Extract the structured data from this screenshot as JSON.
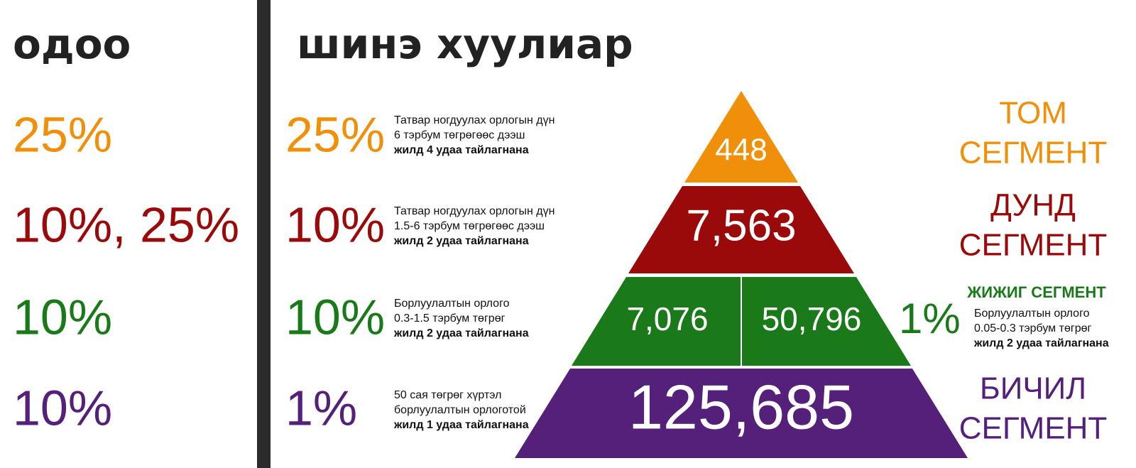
{
  "header": {
    "current_title": "одоо",
    "new_title": "шинэ хуулиар"
  },
  "current_rates": [
    "25%",
    "10%, 25%",
    "10%",
    "10%"
  ],
  "tiers": [
    {
      "rate": "25%",
      "lines": [
        "Татвар ногдуулах орлогын дүн",
        "6 тэрбум төгрөгөөс дээш",
        "жилд 4 удаа тайлагнана"
      ]
    },
    {
      "rate": "10%",
      "lines": [
        "Татвар ногдуулах орлогын дүн",
        "1.5-6 тэрбум төгрөгөөс дээш",
        "жилд 2 удаа тайлагнана"
      ]
    },
    {
      "rate": "10%",
      "lines": [
        "Борлуулалтын орлого",
        "0.3-1.5 тэрбум төгрөг",
        "жилд 2 удаа тайлагнана"
      ]
    },
    {
      "rate": "1%",
      "lines": [
        "50 сая төгрөг хүртэл",
        "борлуулалтын орлоготой",
        "жилд 1 удаа тайлагнана"
      ]
    }
  ],
  "pyramid": [
    "448",
    "7,563",
    "7,076",
    "50,796",
    "125,685"
  ],
  "segments": {
    "large": [
      "ТОМ",
      "СЕГМЕНТ"
    ],
    "medium": [
      "ДУНД",
      "СЕГМЕНТ"
    ],
    "small": {
      "name": "ЖИЖИГ СЕГМЕНТ",
      "rate": "1%",
      "lines": [
        "Борлуулалтын орлого",
        "0.05-0.3 тэрбум төгрөг",
        "жилд 2 удаа тайлагнана"
      ]
    },
    "micro": [
      "БИЧИЛ",
      "СЕГМЕНТ"
    ]
  }
}
